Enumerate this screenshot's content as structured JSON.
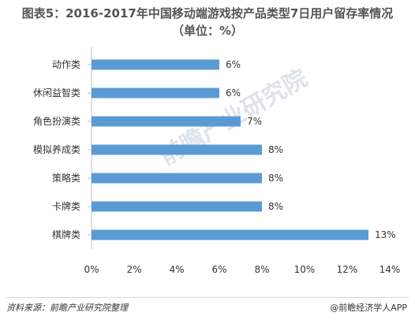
{
  "title_line1": "图表5：2016-2017年中国移动端游戏按产品类型7日用户留存率情况",
  "title_line2": "（单位：%）",
  "watermark": "前瞻产业研究院",
  "footer": {
    "source": "资料来源：前瞻产业研究院整理",
    "brand": "@前瞻经济学人APP"
  },
  "colors": {
    "bar": "#5b9bd5"
  },
  "chart_data": {
    "type": "bar",
    "orientation": "horizontal",
    "categories": [
      "动作类",
      "休闲益智类",
      "角色扮演类",
      "模拟养成类",
      "策略类",
      "卡牌类",
      "棋牌类"
    ],
    "values": [
      6,
      6,
      7,
      8,
      8,
      8,
      13
    ],
    "value_labels": [
      "6%",
      "6%",
      "7%",
      "8%",
      "8%",
      "8%",
      "13%"
    ],
    "xlim": [
      0,
      14
    ],
    "xticks": [
      "0%",
      "2%",
      "4%",
      "6%",
      "8%",
      "10%",
      "12%",
      "14%"
    ],
    "xlabel": "",
    "ylabel": "",
    "grid": false,
    "legend": "none"
  }
}
